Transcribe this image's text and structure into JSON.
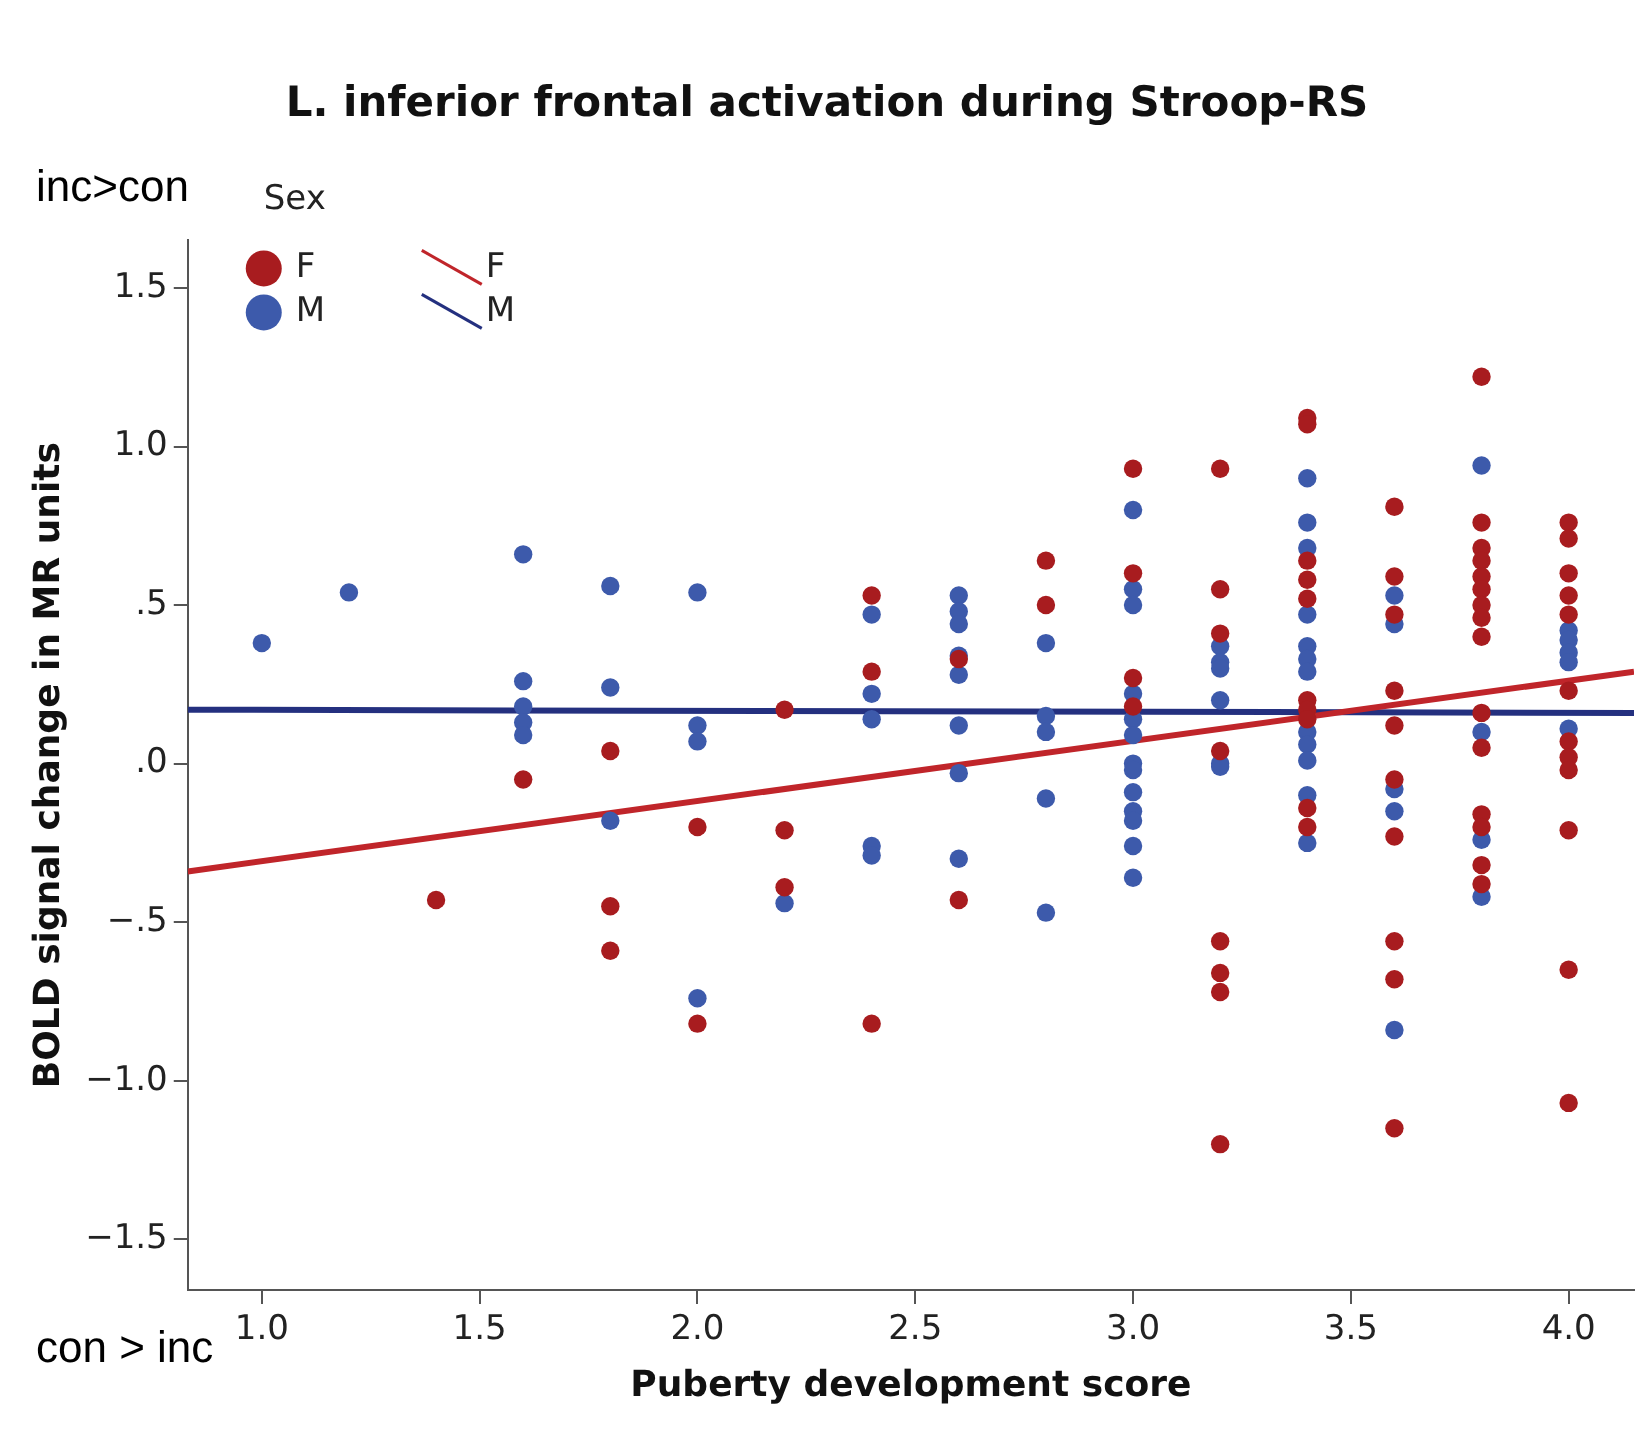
{
  "chart_data": {
    "type": "scatter",
    "title": "L. inferior frontal activation during Stroop-RS",
    "xlabel": "Puberty development score",
    "ylabel": "BOLD signal change in MR units",
    "legend_title": "Sex",
    "legend": "top left",
    "grid": false,
    "marker": "circle",
    "annotations": [
      "inc>con",
      "con > inc"
    ],
    "xlim": [
      0.83,
      4.15
    ],
    "xticks": [
      {
        "value": 1,
        "label": "1.0"
      },
      {
        "value": 1.5,
        "label": "1.5"
      },
      {
        "value": 2,
        "label": "2.0"
      },
      {
        "value": 2.5,
        "label": "2.5"
      },
      {
        "value": 3,
        "label": "3.0"
      },
      {
        "value": 3.5,
        "label": "3.5"
      },
      {
        "value": 4,
        "label": "4.0"
      }
    ],
    "ylim": [
      -1.66,
      1.65
    ],
    "yticks": [
      {
        "value": -1.5,
        "label": "−1.5"
      },
      {
        "value": -1,
        "label": "−1.0"
      },
      {
        "value": -0.5,
        "label": "−.5"
      },
      {
        "value": 0,
        "label": ".0"
      },
      {
        "value": 0.5,
        "label": ".5"
      },
      {
        "value": 1,
        "label": "1.0"
      },
      {
        "value": 1.5,
        "label": "1.5"
      }
    ],
    "series": [
      {
        "name": "F",
        "type": "scatter",
        "color": "#a81c1f",
        "x": [
          1.4,
          1.6,
          1.8,
          1.8,
          1.8,
          2.0,
          2.0,
          2.2,
          2.2,
          2.2,
          2.4,
          2.4,
          2.4,
          2.6,
          2.6,
          2.8,
          2.8,
          3.0,
          3.0,
          3.0,
          3.0,
          3.2,
          3.2,
          3.2,
          3.2,
          3.2,
          3.2,
          3.2,
          3.2,
          3.4,
          3.4,
          3.4,
          3.4,
          3.4,
          3.4,
          3.4,
          3.4,
          3.4,
          3.4,
          3.6,
          3.6,
          3.6,
          3.6,
          3.6,
          3.6,
          3.6,
          3.6,
          3.6,
          3.6,
          3.8,
          3.8,
          3.8,
          3.8,
          3.8,
          3.8,
          3.8,
          3.8,
          3.8,
          3.8,
          3.8,
          3.8,
          3.8,
          3.8,
          3.8,
          4.0,
          4.0,
          4.0,
          4.0,
          4.0,
          4.0,
          4.0,
          4.0,
          4.0,
          4.0,
          4.0,
          4.0
        ],
        "values": [
          -0.43,
          -0.05,
          0.04,
          -0.45,
          -0.59,
          -0.2,
          -0.82,
          0.17,
          -0.21,
          -0.39,
          0.53,
          0.29,
          -0.82,
          0.33,
          -0.43,
          0.64,
          0.5,
          0.93,
          0.6,
          0.27,
          0.18,
          0.93,
          0.55,
          0.41,
          0.04,
          -0.56,
          -0.66,
          -0.72,
          -1.2,
          1.09,
          1.07,
          0.64,
          0.58,
          0.52,
          0.2,
          0.17,
          0.14,
          -0.14,
          -0.2,
          0.81,
          0.59,
          0.47,
          0.23,
          0.12,
          -0.05,
          -0.23,
          -0.56,
          -0.68,
          -1.15,
          1.22,
          0.76,
          0.68,
          0.64,
          0.59,
          0.55,
          0.5,
          0.46,
          0.4,
          0.16,
          0.05,
          -0.16,
          -0.2,
          -0.32,
          -0.38,
          0.76,
          0.71,
          0.6,
          0.53,
          0.47,
          0.23,
          0.07,
          0.02,
          -0.02,
          -0.21,
          -0.65,
          -1.07
        ]
      },
      {
        "name": "M",
        "type": "scatter",
        "color": "#3d5aab",
        "x": [
          1.0,
          1.2,
          1.6,
          1.6,
          1.6,
          1.6,
          1.6,
          1.8,
          1.8,
          1.8,
          2.0,
          2.0,
          2.0,
          2.0,
          2.2,
          2.4,
          2.4,
          2.4,
          2.4,
          2.4,
          2.6,
          2.6,
          2.6,
          2.6,
          2.6,
          2.6,
          2.6,
          2.6,
          2.8,
          2.8,
          2.8,
          2.8,
          2.8,
          3.0,
          3.0,
          3.0,
          3.0,
          3.0,
          3.0,
          3.0,
          3.0,
          3.0,
          3.0,
          3.0,
          3.0,
          3.0,
          3.2,
          3.2,
          3.2,
          3.2,
          3.2,
          3.2,
          3.4,
          3.4,
          3.4,
          3.4,
          3.4,
          3.4,
          3.4,
          3.4,
          3.4,
          3.4,
          3.4,
          3.4,
          3.6,
          3.6,
          3.6,
          3.6,
          3.6,
          3.8,
          3.8,
          3.8,
          3.8,
          4.0,
          4.0,
          4.0,
          4.0,
          4.0
        ],
        "values": [
          0.38,
          0.54,
          0.66,
          0.26,
          0.18,
          0.13,
          0.09,
          0.56,
          0.24,
          -0.18,
          0.54,
          0.12,
          0.07,
          -0.74,
          -0.44,
          0.47,
          0.22,
          0.14,
          -0.26,
          -0.29,
          0.53,
          0.48,
          0.44,
          0.34,
          0.28,
          0.12,
          -0.03,
          -0.3,
          0.38,
          0.15,
          0.1,
          -0.11,
          -0.47,
          0.8,
          0.55,
          0.5,
          0.22,
          0.14,
          0.09,
          0.0,
          -0.02,
          -0.09,
          -0.15,
          -0.18,
          -0.26,
          -0.36,
          0.37,
          0.32,
          0.3,
          0.2,
          0.0,
          -0.01,
          0.9,
          0.76,
          0.68,
          0.47,
          0.37,
          0.33,
          0.29,
          0.1,
          0.06,
          0.01,
          -0.1,
          -0.25,
          0.53,
          0.44,
          -0.08,
          -0.15,
          -0.84,
          0.94,
          0.1,
          -0.24,
          -0.42,
          0.42,
          0.39,
          0.35,
          0.32,
          0.11
        ]
      },
      {
        "name": "F",
        "type": "line",
        "marker": "none",
        "color": "#c0252a",
        "x": [
          0.83,
          4.15
        ],
        "values": [
          -0.34,
          0.29
        ]
      },
      {
        "name": "M",
        "type": "line",
        "marker": "none",
        "color": "#24307f",
        "x": [
          0.83,
          4.15
        ],
        "values": [
          0.17,
          0.16
        ]
      }
    ]
  }
}
